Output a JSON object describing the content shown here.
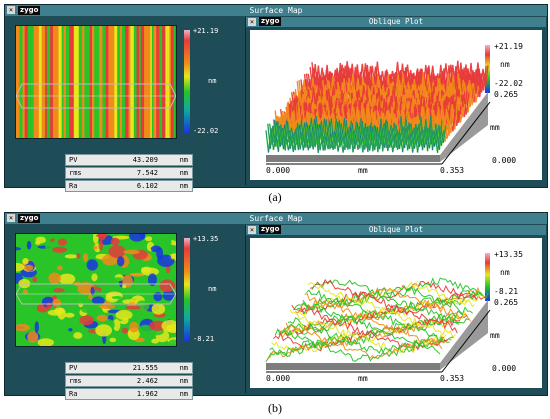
{
  "panels": [
    {
      "window_title": "Surface Map",
      "logo": "zygo",
      "close_icon": "close-icon",
      "oblique_title": "Oblique Plot",
      "colorbar": {
        "max": "+21.19",
        "min": "-22.02",
        "unit": "nm"
      },
      "stats": [
        {
          "label": "PV",
          "value": "43.209",
          "unit": "nm"
        },
        {
          "label": "rms",
          "value": "7.542",
          "unit": "nm"
        },
        {
          "label": "Ra",
          "value": "6.102",
          "unit": "nm"
        }
      ],
      "oblique": {
        "z_max": "+21.19",
        "z_unit": "nm",
        "z_min": "-22.02",
        "y_extent": "0.265",
        "y_unit": "mm",
        "y_zero": "0.000",
        "x_start": "0.000",
        "x_unit": "mm",
        "x_end": "0.353"
      },
      "caption": "(a)"
    },
    {
      "window_title": "Surface Map",
      "logo": "zygo",
      "close_icon": "close-icon",
      "oblique_title": "Oblique Plot",
      "colorbar": {
        "max": "+13.35",
        "min": "-8.21",
        "unit": "nm"
      },
      "stats": [
        {
          "label": "PV",
          "value": "21.555",
          "unit": "nm"
        },
        {
          "label": "rms",
          "value": "2.462",
          "unit": "nm"
        },
        {
          "label": "Ra",
          "value": "1.962",
          "unit": "nm"
        }
      ],
      "oblique": {
        "z_max": "+13.35",
        "z_unit": "nm",
        "z_min": "-8.21",
        "y_extent": "0.265",
        "y_unit": "mm",
        "y_zero": "0.000",
        "x_start": "0.000",
        "x_unit": "mm",
        "x_end": "0.353"
      },
      "caption": "(b)"
    }
  ],
  "colors": {
    "panel_bg": "#1e4d57",
    "titlebar": "#3f7f8e",
    "surface_red": "#e83a3a",
    "surface_orange": "#f08a1a",
    "surface_yellow": "#e8e61c",
    "surface_green": "#28c428",
    "surface_blue": "#1a34e0"
  }
}
